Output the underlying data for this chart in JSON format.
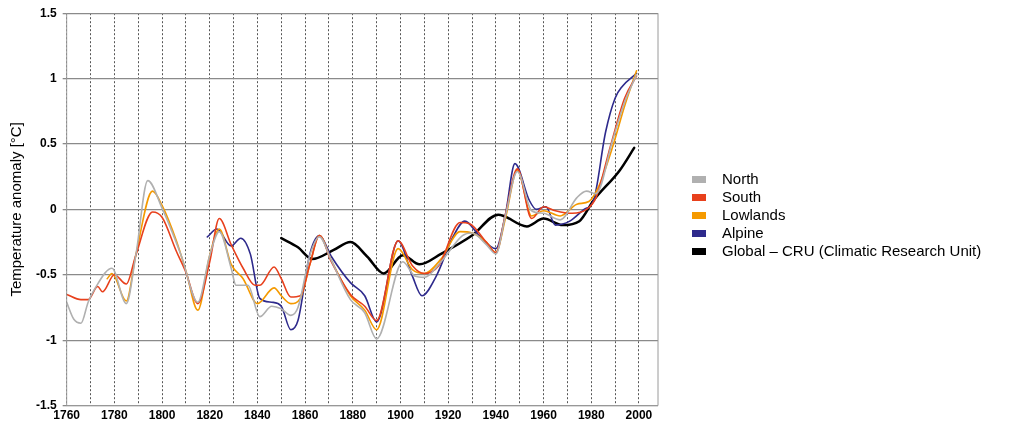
{
  "chart_data": {
    "type": "line",
    "ylabel": "Temperature anomaly [°C]",
    "xlim": [
      1760,
      2008
    ],
    "xticks": [
      1760,
      {
        "value": 1770,
        "label": null
      },
      1780,
      {
        "value": 1790,
        "label": null
      },
      1800,
      {
        "value": 1810,
        "label": null
      },
      1820,
      {
        "value": 1830,
        "label": null
      },
      1840,
      {
        "value": 1850,
        "label": null
      },
      1860,
      {
        "value": 1870,
        "label": null
      },
      1880,
      {
        "value": 1890,
        "label": null
      },
      1900,
      {
        "value": 1910,
        "label": null
      },
      1920,
      {
        "value": 1930,
        "label": null
      },
      1940,
      {
        "value": 1950,
        "label": null
      },
      1960,
      {
        "value": 1970,
        "label": null
      },
      1980,
      {
        "value": 1990,
        "label": null
      },
      2000
    ],
    "ylim": [
      -1.5,
      1.5
    ],
    "yticks": [
      -1.5,
      -1,
      -0.5,
      0,
      0.5,
      1,
      1.5
    ],
    "grid": true,
    "legend": "right",
    "marker": "none",
    "line_style": "solid",
    "series": [
      {
        "name": "North",
        "color": "#b0b0b0",
        "x": [
          1760,
          1763,
          1766,
          1769,
          1772,
          1779,
          1785,
          1789,
          1794,
          1800,
          1808,
          1815,
          1820,
          1824,
          1829,
          1831,
          1836,
          1841,
          1846,
          1850,
          1854,
          1857,
          1862,
          1866,
          1871,
          1879,
          1885,
          1890,
          1901,
          1906,
          1910,
          1917,
          1926,
          1930,
          1936,
          1940,
          1944,
          1949,
          1955,
          1960,
          1967,
          1974,
          1978,
          1982,
          1989,
          1994,
          1999
        ],
        "values": [
          -0.71,
          -0.84,
          -0.87,
          -0.71,
          -0.6,
          -0.45,
          -0.72,
          -0.35,
          0.22,
          0.01,
          -0.35,
          -0.71,
          -0.35,
          -0.17,
          -0.45,
          -0.58,
          -0.58,
          -0.82,
          -0.74,
          -0.76,
          -0.81,
          -0.75,
          -0.35,
          -0.21,
          -0.39,
          -0.69,
          -0.79,
          -0.99,
          -0.4,
          -0.51,
          -0.52,
          -0.4,
          -0.2,
          -0.18,
          -0.27,
          -0.34,
          -0.05,
          0.29,
          -0.01,
          -0.03,
          -0.08,
          0.09,
          0.14,
          0.12,
          0.53,
          0.82,
          1.03
        ]
      },
      {
        "name": "South",
        "color": "#e8401c",
        "x": [
          1760,
          1766,
          1769,
          1773,
          1775,
          1780,
          1785,
          1789,
          1796,
          1800,
          1806,
          1810,
          1815,
          1820,
          1824,
          1829,
          1834,
          1839,
          1841,
          1847,
          1850,
          1854,
          1858,
          1862,
          1866,
          1871,
          1879,
          1885,
          1890,
          1899,
          1905,
          1910,
          1916,
          1925,
          1929,
          1936,
          1940,
          1944,
          1949,
          1955,
          1960,
          1965,
          1972,
          1978,
          1982,
          1988,
          1994,
          1999
        ],
        "values": [
          -0.65,
          -0.69,
          -0.69,
          -0.59,
          -0.63,
          -0.5,
          -0.57,
          -0.35,
          -0.02,
          -0.06,
          -0.32,
          -0.48,
          -0.72,
          -0.4,
          -0.07,
          -0.27,
          -0.45,
          -0.58,
          -0.58,
          -0.44,
          -0.53,
          -0.67,
          -0.66,
          -0.42,
          -0.2,
          -0.4,
          -0.65,
          -0.74,
          -0.85,
          -0.24,
          -0.43,
          -0.49,
          -0.43,
          -0.1,
          -0.11,
          -0.25,
          -0.33,
          -0.04,
          0.31,
          -0.07,
          0.02,
          -0.01,
          -0.03,
          0,
          0.09,
          0.48,
          0.85,
          1.02
        ]
      },
      {
        "name": "Lowlands",
        "color": "#f59a00",
        "x": [
          1777,
          1779,
          1785,
          1789,
          1796,
          1800,
          1806,
          1810,
          1815,
          1820,
          1824,
          1829,
          1834,
          1840,
          1847,
          1850,
          1854,
          1858,
          1862,
          1866,
          1871,
          1879,
          1885,
          1890,
          1899,
          1905,
          1910,
          1917,
          1925,
          1930,
          1936,
          1940,
          1944,
          1949,
          1955,
          1960,
          1967,
          1974,
          1979,
          1983,
          1989,
          1994,
          1999
        ],
        "values": [
          -0.53,
          -0.49,
          -0.7,
          -0.35,
          0.14,
          0.03,
          -0.24,
          -0.47,
          -0.77,
          -0.35,
          -0.15,
          -0.42,
          -0.53,
          -0.72,
          -0.6,
          -0.66,
          -0.72,
          -0.68,
          -0.42,
          -0.2,
          -0.39,
          -0.66,
          -0.77,
          -0.92,
          -0.3,
          -0.46,
          -0.49,
          -0.38,
          -0.17,
          -0.18,
          -0.25,
          -0.33,
          -0.07,
          0.3,
          -0.05,
          -0.01,
          -0.05,
          0.04,
          0.06,
          0.17,
          0.48,
          0.79,
          1.06
        ]
      },
      {
        "name": "Alpine",
        "color": "#2e2a8c",
        "x": [
          1819,
          1823,
          1829,
          1833,
          1837,
          1841,
          1846,
          1850,
          1854,
          1857,
          1862,
          1866,
          1871,
          1879,
          1885,
          1890,
          1899,
          1905,
          1909,
          1915,
          1922,
          1927,
          1933,
          1940,
          1944,
          1948,
          1954,
          1957,
          1961,
          1965,
          1971,
          1977,
          1981,
          1986,
          1990,
          1993,
          1999
        ],
        "values": [
          -0.21,
          -0.15,
          -0.28,
          -0.22,
          -0.34,
          -0.68,
          -0.71,
          -0.74,
          -0.92,
          -0.85,
          -0.34,
          -0.2,
          -0.36,
          -0.56,
          -0.66,
          -0.86,
          -0.24,
          -0.51,
          -0.66,
          -0.51,
          -0.21,
          -0.09,
          -0.2,
          -0.3,
          -0.04,
          0.35,
          0.07,
          0,
          0.02,
          -0.12,
          -0.09,
          0,
          0.07,
          0.59,
          0.85,
          0.94,
          1.04
        ]
      },
      {
        "name": "Global – CRU (Climatic Research Unit)",
        "color": "#000000",
        "x": [
          1850,
          1857,
          1863,
          1872,
          1879,
          1886,
          1893,
          1901,
          1908,
          1917,
          1930,
          1941,
          1953,
          1960,
          1968,
          1975,
          1981,
          1992,
          1998
        ],
        "values": [
          -0.22,
          -0.29,
          -0.38,
          -0.31,
          -0.25,
          -0.36,
          -0.49,
          -0.35,
          -0.42,
          -0.34,
          -0.2,
          -0.04,
          -0.13,
          -0.07,
          -0.12,
          -0.09,
          0.07,
          0.3,
          0.47
        ]
      }
    ]
  }
}
